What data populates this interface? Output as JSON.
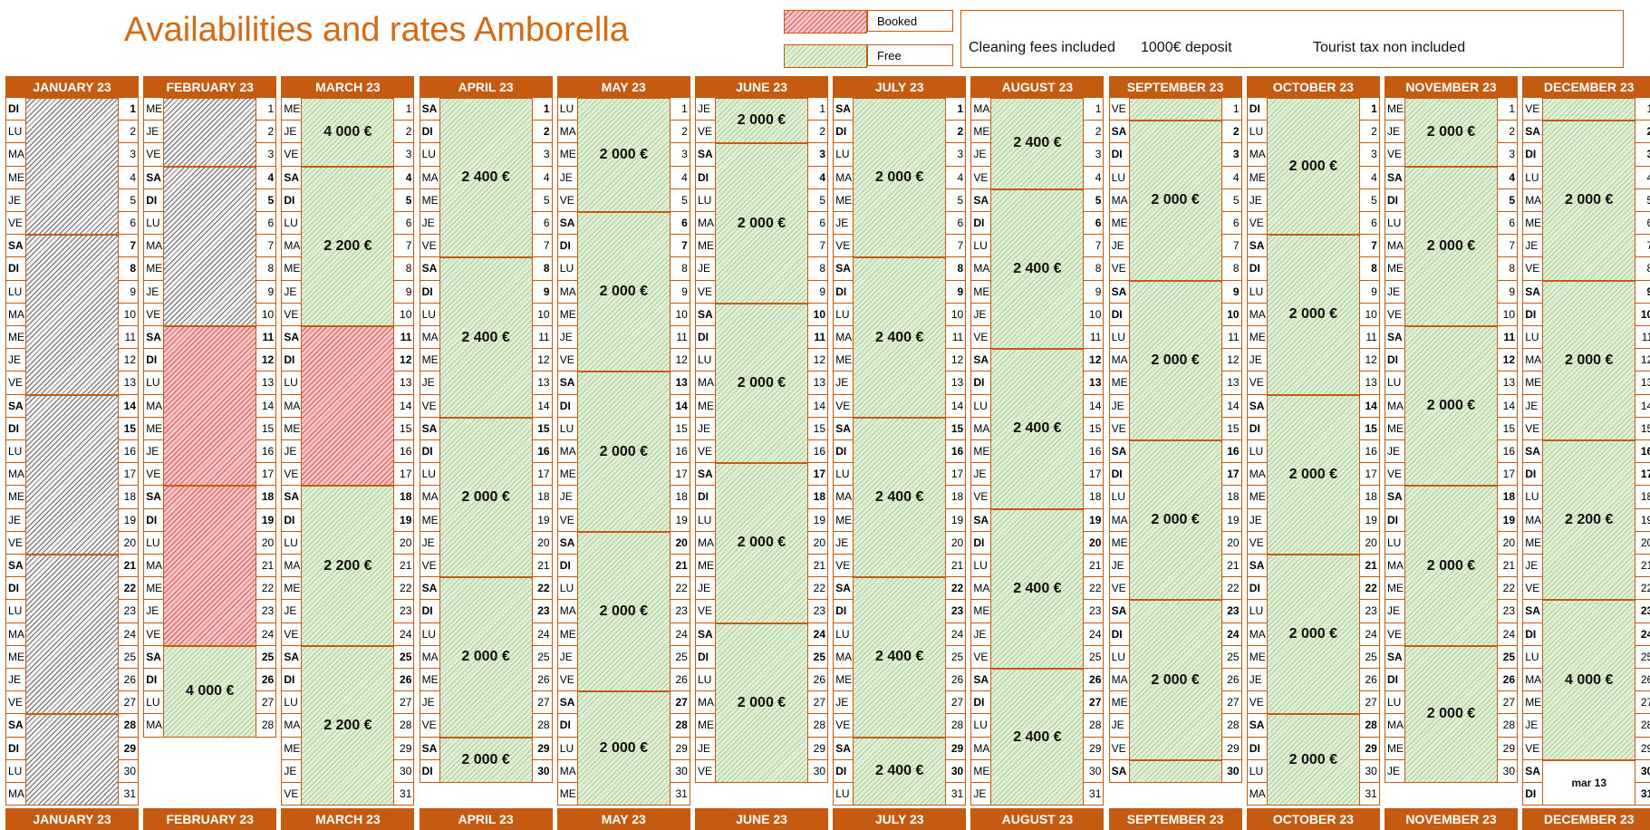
{
  "title": "Availabilities and rates Amborella",
  "legend": {
    "booked": "Booked",
    "free": "Free"
  },
  "info": {
    "cleaning": "Cleaning fees included",
    "deposit": "1000€ deposit",
    "tax": "Tourist tax non included"
  },
  "colors": {
    "accent": "#c55a11",
    "title": "#d46a14",
    "free": "#a9cf8f",
    "booked": "#e04f4f",
    "blocked": "#6a6a6a"
  },
  "months": [
    {
      "label": "JANUARY 23",
      "days": 31,
      "first": 0,
      "stays": [
        {
          "start": 1,
          "end": 6,
          "type": "blocked",
          "label": ""
        },
        {
          "start": 7,
          "end": 13,
          "type": "blocked",
          "label": ""
        },
        {
          "start": 14,
          "end": 20,
          "type": "blocked",
          "label": ""
        },
        {
          "start": 21,
          "end": 27,
          "type": "blocked",
          "label": ""
        },
        {
          "start": 28,
          "end": 31,
          "type": "blocked",
          "label": ""
        }
      ]
    },
    {
      "label": "FEBRUARY 23",
      "days": 28,
      "first": 3,
      "stays": [
        {
          "start": 1,
          "end": 3,
          "type": "blocked",
          "label": ""
        },
        {
          "start": 4,
          "end": 10,
          "type": "blocked",
          "label": ""
        },
        {
          "start": 11,
          "end": 17,
          "type": "booked",
          "label": ""
        },
        {
          "start": 18,
          "end": 24,
          "type": "booked",
          "label": ""
        },
        {
          "start": 25,
          "end": 28,
          "type": "free",
          "label": "4 000 €"
        }
      ]
    },
    {
      "label": "MARCH 23",
      "days": 31,
      "first": 3,
      "stays": [
        {
          "start": 1,
          "end": 3,
          "type": "free",
          "label": "4 000 €"
        },
        {
          "start": 4,
          "end": 10,
          "type": "free",
          "label": "2 200 €"
        },
        {
          "start": 11,
          "end": 17,
          "type": "booked",
          "label": ""
        },
        {
          "start": 18,
          "end": 24,
          "type": "free",
          "label": "2 200 €"
        },
        {
          "start": 25,
          "end": 31,
          "type": "free",
          "label": "2 200 €"
        }
      ]
    },
    {
      "label": "APRIL 23",
      "days": 30,
      "first": 6,
      "stays": [
        {
          "start": 1,
          "end": 7,
          "type": "free",
          "label": "2 400 €"
        },
        {
          "start": 8,
          "end": 14,
          "type": "free",
          "label": "2 400 €"
        },
        {
          "start": 15,
          "end": 21,
          "type": "free",
          "label": "2 000 €"
        },
        {
          "start": 22,
          "end": 28,
          "type": "free",
          "label": "2 000 €"
        },
        {
          "start": 29,
          "end": 30,
          "type": "free",
          "label": "2 000 €"
        }
      ]
    },
    {
      "label": "MAY 23",
      "days": 31,
      "first": 1,
      "stays": [
        {
          "start": 1,
          "end": 5,
          "type": "free",
          "label": "2 000 €"
        },
        {
          "start": 6,
          "end": 12,
          "type": "free",
          "label": "2 000 €"
        },
        {
          "start": 13,
          "end": 19,
          "type": "free",
          "label": "2 000 €"
        },
        {
          "start": 20,
          "end": 26,
          "type": "free",
          "label": "2 000 €"
        },
        {
          "start": 27,
          "end": 31,
          "type": "free",
          "label": "2 000 €"
        }
      ]
    },
    {
      "label": "JUNE 23",
      "days": 30,
      "first": 4,
      "stays": [
        {
          "start": 1,
          "end": 2,
          "type": "free",
          "label": "2 000 €"
        },
        {
          "start": 3,
          "end": 9,
          "type": "free",
          "label": "2 000 €"
        },
        {
          "start": 10,
          "end": 16,
          "type": "free",
          "label": "2 000 €"
        },
        {
          "start": 17,
          "end": 23,
          "type": "free",
          "label": "2 000 €"
        },
        {
          "start": 24,
          "end": 30,
          "type": "free",
          "label": "2 000 €"
        }
      ]
    },
    {
      "label": "JULY 23",
      "days": 31,
      "first": 6,
      "stays": [
        {
          "start": 1,
          "end": 7,
          "type": "free",
          "label": "2 000 €"
        },
        {
          "start": 8,
          "end": 14,
          "type": "free",
          "label": "2 400 €"
        },
        {
          "start": 15,
          "end": 21,
          "type": "free",
          "label": "2 400 €"
        },
        {
          "start": 22,
          "end": 28,
          "type": "free",
          "label": "2 400 €"
        },
        {
          "start": 29,
          "end": 31,
          "type": "free",
          "label": "2 400 €"
        }
      ]
    },
    {
      "label": "AUGUST 23",
      "days": 31,
      "first": 2,
      "stays": [
        {
          "start": 1,
          "end": 4,
          "type": "free",
          "label": "2 400 €"
        },
        {
          "start": 5,
          "end": 11,
          "type": "free",
          "label": "2 400 €"
        },
        {
          "start": 12,
          "end": 18,
          "type": "free",
          "label": "2 400 €"
        },
        {
          "start": 19,
          "end": 25,
          "type": "free",
          "label": "2 400 €"
        },
        {
          "start": 26,
          "end": 31,
          "type": "free",
          "label": "2 400 €"
        }
      ]
    },
    {
      "label": "SEPTEMBER 23",
      "days": 30,
      "first": 5,
      "stays": [
        {
          "start": 1,
          "end": 1,
          "type": "free",
          "label": ""
        },
        {
          "start": 2,
          "end": 8,
          "type": "free",
          "label": "2 000 €"
        },
        {
          "start": 9,
          "end": 15,
          "type": "free",
          "label": "2 000 €"
        },
        {
          "start": 16,
          "end": 22,
          "type": "free",
          "label": "2 000 €"
        },
        {
          "start": 23,
          "end": 29,
          "type": "free",
          "label": "2 000 €"
        },
        {
          "start": 30,
          "end": 30,
          "type": "free",
          "label": ""
        }
      ]
    },
    {
      "label": "OCTOBER 23",
      "days": 31,
      "first": 0,
      "stays": [
        {
          "start": 1,
          "end": 6,
          "type": "free",
          "label": "2 000 €"
        },
        {
          "start": 7,
          "end": 13,
          "type": "free",
          "label": "2 000 €"
        },
        {
          "start": 14,
          "end": 20,
          "type": "free",
          "label": "2 000 €"
        },
        {
          "start": 21,
          "end": 27,
          "type": "free",
          "label": "2 000 €"
        },
        {
          "start": 28,
          "end": 31,
          "type": "free",
          "label": "2 000 €"
        }
      ]
    },
    {
      "label": "NOVEMBER 23",
      "days": 30,
      "first": 3,
      "stays": [
        {
          "start": 1,
          "end": 3,
          "type": "free",
          "label": "2 000 €"
        },
        {
          "start": 4,
          "end": 10,
          "type": "free",
          "label": "2 000 €"
        },
        {
          "start": 11,
          "end": 17,
          "type": "free",
          "label": "2 000 €"
        },
        {
          "start": 18,
          "end": 24,
          "type": "free",
          "label": "2 000 €"
        },
        {
          "start": 25,
          "end": 30,
          "type": "free",
          "label": "2 000 €"
        }
      ]
    },
    {
      "label": "DECEMBER 23",
      "days": 31,
      "first": 5,
      "stays": [
        {
          "start": 1,
          "end": 1,
          "type": "free",
          "label": ""
        },
        {
          "start": 2,
          "end": 8,
          "type": "free",
          "label": "2 000 €"
        },
        {
          "start": 9,
          "end": 15,
          "type": "free",
          "label": "2 000 €"
        },
        {
          "start": 16,
          "end": 22,
          "type": "free",
          "label": "2 200 €"
        },
        {
          "start": 23,
          "end": 29,
          "type": "free",
          "label": "4 000 €"
        },
        {
          "start": 30,
          "end": 31,
          "type": "plain",
          "label": "mar 13"
        }
      ]
    }
  ],
  "weekdays": [
    "DI",
    "LU",
    "MA",
    "ME",
    "JE",
    "VE",
    "SA"
  ]
}
